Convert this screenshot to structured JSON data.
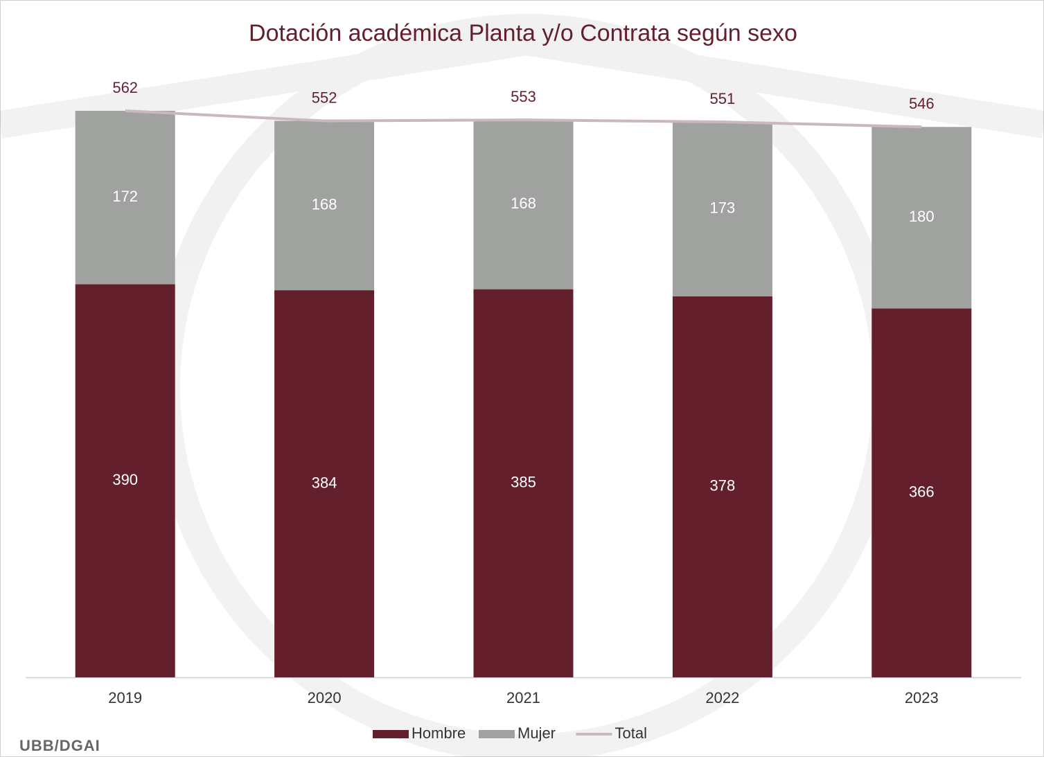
{
  "chart_data": {
    "type": "bar",
    "stacked": true,
    "title": "Dotación académica Planta y/o Contrata según sexo",
    "categories": [
      "2019",
      "2020",
      "2021",
      "2022",
      "2023"
    ],
    "series": [
      {
        "name": "Hombre",
        "color": "#641f2c",
        "values": [
          390,
          384,
          385,
          378,
          366
        ]
      },
      {
        "name": "Mujer",
        "color": "#a0a2a0",
        "values": [
          172,
          168,
          168,
          173,
          180
        ]
      },
      {
        "name": "Total",
        "type": "line",
        "color": "#c9b8bd",
        "values": [
          562,
          552,
          553,
          551,
          546
        ]
      }
    ],
    "legend": "bottom",
    "footer": "UBB/DGAI"
  }
}
